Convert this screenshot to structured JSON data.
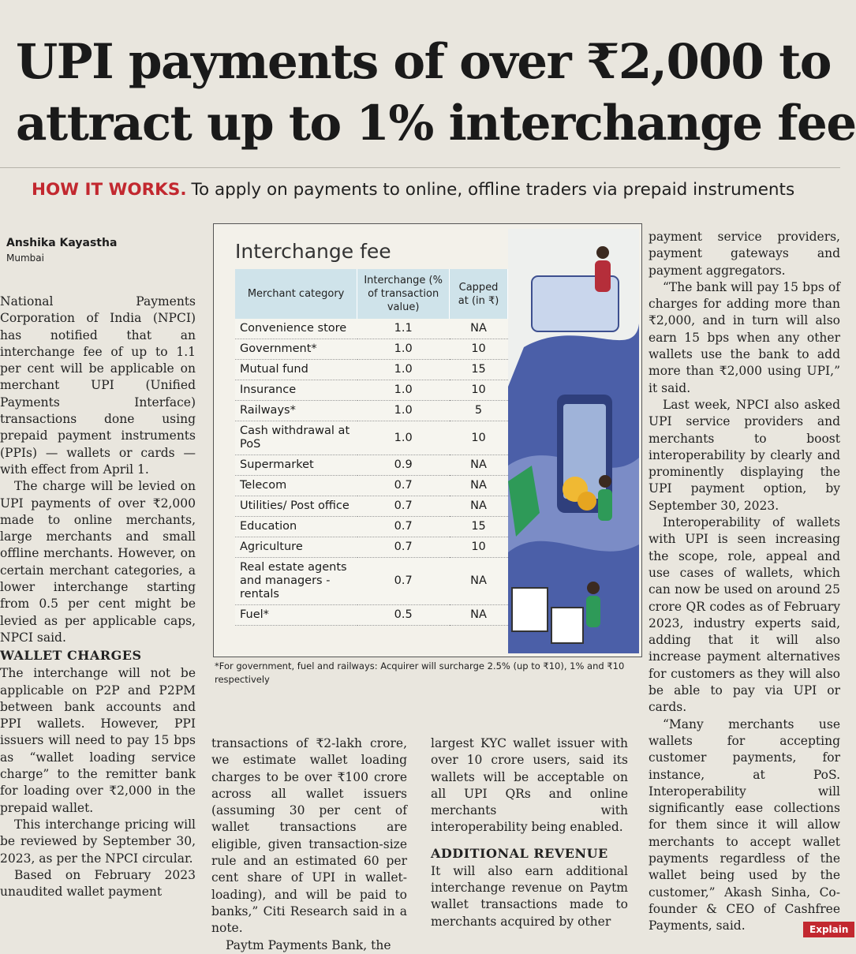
{
  "headline": {
    "line1": "UPI payments of over ₹2,000 to",
    "line2": "attract up to 1% interchange fee"
  },
  "subhead": {
    "kicker": "HOW IT WORKS.",
    "text": "To apply on payments to online, offline traders via prepaid instruments"
  },
  "byline": {
    "name": "Anshika Kayastha",
    "location": "Mumbai"
  },
  "infographic": {
    "title": "Interchange fee",
    "headers": [
      "Merchant category",
      "Interchange (% of transaction value)",
      "Capped at (in ₹)"
    ],
    "rows": [
      {
        "category": "Convenience store",
        "interchange": "1.1",
        "cap": "NA"
      },
      {
        "category": "Government*",
        "interchange": "1.0",
        "cap": "10"
      },
      {
        "category": "Mutual fund",
        "interchange": "1.0",
        "cap": "15"
      },
      {
        "category": "Insurance",
        "interchange": "1.0",
        "cap": "10"
      },
      {
        "category": "Railways*",
        "interchange": "1.0",
        "cap": "5"
      },
      {
        "category": "Cash withdrawal at PoS",
        "interchange": "1.0",
        "cap": "10"
      },
      {
        "category": "Supermarket",
        "interchange": "0.9",
        "cap": "NA"
      },
      {
        "category": "Telecom",
        "interchange": "0.7",
        "cap": "NA"
      },
      {
        "category": "Utilities/ Post office",
        "interchange": "0.7",
        "cap": "NA"
      },
      {
        "category": "Education",
        "interchange": "0.7",
        "cap": "15"
      },
      {
        "category": "Agriculture",
        "interchange": "0.7",
        "cap": "10"
      },
      {
        "category": "Real estate agents and managers - rentals",
        "interchange": "0.7",
        "cap": "NA"
      },
      {
        "category": "Fuel*",
        "interchange": "0.5",
        "cap": "NA"
      }
    ],
    "footnote": "*For government, fuel and railways: Acquirer will surcharge 2.5% (up to ₹10), 1% and ₹10 respectively"
  },
  "col1": {
    "p1": "National Payments Corporation of India (NPCI) has notified that an interchange fee of up to 1.1 per cent will be applicable on merchant UPI (Unified Payments Interface) transactions done using prepaid payment instruments (PPIs) — wallets or cards — with effect from April 1.",
    "p2": "The charge will be levied on UPI payments of over ₹2,000 made to online merchants, large merchants and small offline merchants. However, on certain merchant categories, a lower interchange starting from 0.5 per cent might be levied as per applicable caps, NPCI said.",
    "heading": "WALLET CHARGES",
    "p3": "The interchange will not be applicable on P2P and P2PM between bank accounts and PPI wallets. However, PPI issuers will need to pay 15 bps as “wallet loading service charge” to the remitter bank for loading over ₹2,000 in the prepaid wallet.",
    "p4": "This interchange pricing will be reviewed by September 30, 2023, as per the NPCI circular.",
    "p5": "Based on February 2023 unaudited wallet payment"
  },
  "col2": {
    "p1": "transactions of ₹2-lakh crore, we estimate wallet loading charges to be over ₹100 crore across all wallet issuers (assuming 30 per cent of wallet transactions are eligible, given transaction-size rule and an estimated 60 per cent share of UPI in wallet-loading), and will be paid to banks,” Citi Research said in a note.",
    "p2": "Paytm Payments Bank, the"
  },
  "col3": {
    "p1": "largest KYC wallet issuer with over 10 crore users, said its wallets will be acceptable on all UPI QRs and online merchants with interoperability being enabled.",
    "heading": "ADDITIONAL REVENUE",
    "p2": "It will also earn additional interchange revenue on Paytm wallet transactions made to merchants acquired by other"
  },
  "col4": {
    "p1": "payment service providers, payment gateways and payment aggregators.",
    "p2": "“The bank will pay 15 bps of charges for adding more than ₹2,000, and in turn will also earn 15 bps when any other wallets use the bank to add more than ₹2,000 using UPI,” it said.",
    "p3": "Last week, NPCI also asked UPI service providers and merchants to boost interoperability by clearly and prominently displaying the UPI payment option, by September 30, 2023.",
    "p4": "Interoperability of wallets with UPI is seen increasing the scope, role, appeal and use cases of wallets, which can now be used on around 25 crore QR codes as of February 2023, industry experts said, adding that it will also increase payment alternatives for customers as they will also be able to pay via UPI or cards.",
    "p5": "“Many merchants use wallets for accepting customer payments, for instance, at PoS. Interoperability will significantly ease collections for them since it will allow merchants to accept wallet payments regardless of the wallet being used by the customer,” Akash Sinha, Co-founder & CEO of Cashfree Payments, said."
  },
  "tag": "Explain"
}
